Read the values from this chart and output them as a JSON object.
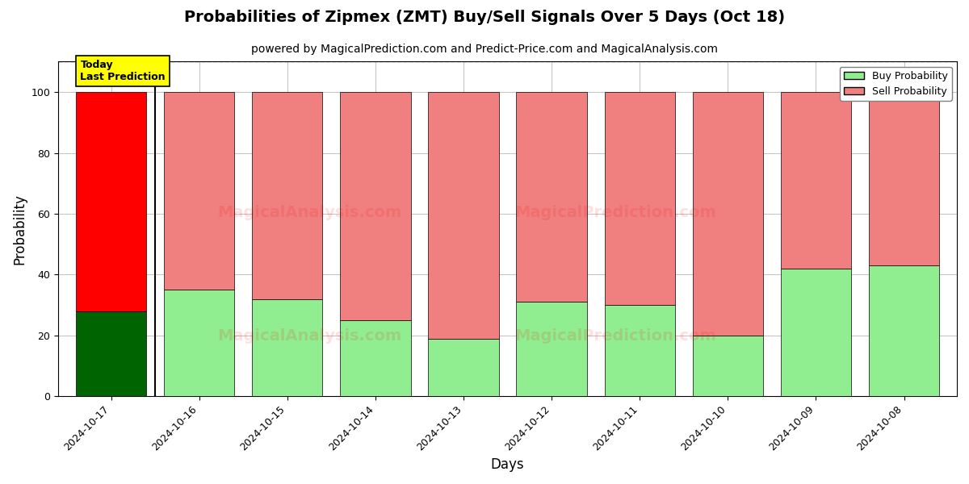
{
  "title": "Probabilities of Zipmex (ZMT) Buy/Sell Signals Over 5 Days (Oct 18)",
  "subtitle": "powered by MagicalPrediction.com and Predict-Price.com and MagicalAnalysis.com",
  "xlabel": "Days",
  "ylabel": "Probability",
  "dates": [
    "2024-10-17",
    "2024-10-16",
    "2024-10-15",
    "2024-10-14",
    "2024-10-13",
    "2024-10-12",
    "2024-10-11",
    "2024-10-10",
    "2024-10-09",
    "2024-10-08"
  ],
  "buy_probs": [
    28,
    35,
    32,
    25,
    19,
    31,
    30,
    20,
    42,
    43
  ],
  "sell_probs": [
    72,
    65,
    68,
    75,
    81,
    69,
    70,
    80,
    58,
    57
  ],
  "today_bar_index": 0,
  "buy_color_today": "#006400",
  "sell_color_today": "#FF0000",
  "buy_color_other": "#90EE90",
  "sell_color_other": "#F08080",
  "today_label_bg": "#FFFF00",
  "today_label_text": "Today\nLast Prediction",
  "legend_buy_label": "Buy Probability",
  "legend_sell_label": "Sell Probability",
  "ylim": [
    0,
    110
  ],
  "yticks": [
    0,
    20,
    40,
    60,
    80,
    100
  ],
  "dashed_line_y": 110,
  "bar_width": 0.8,
  "figsize": [
    12,
    6
  ],
  "dpi": 100,
  "bg_color": "#ffffff",
  "grid_color": "#aaaaaa",
  "title_fontsize": 14,
  "subtitle_fontsize": 10,
  "axis_label_fontsize": 12,
  "tick_fontsize": 9
}
